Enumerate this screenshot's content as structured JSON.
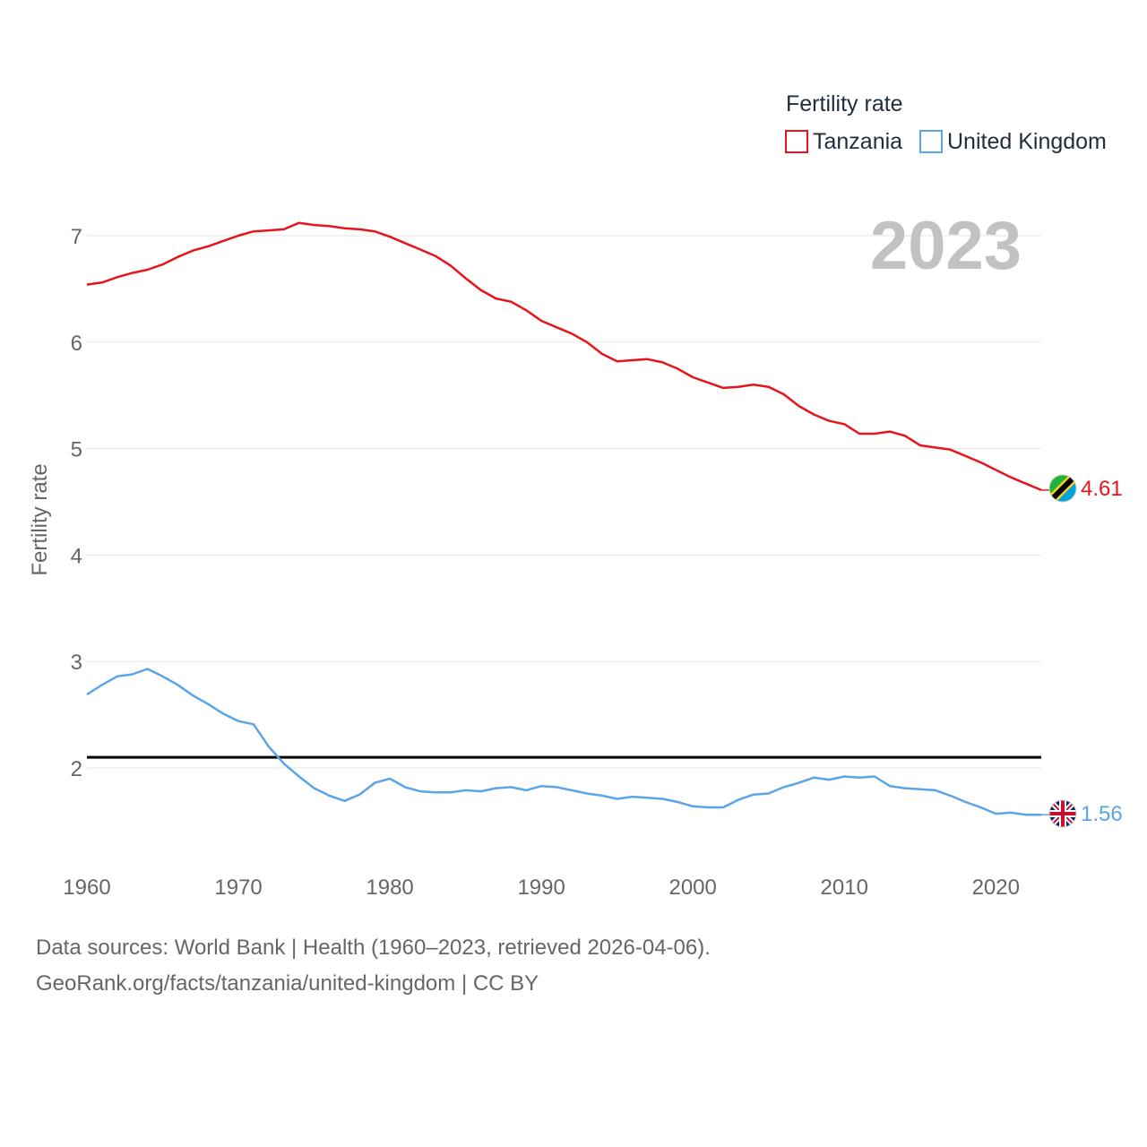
{
  "chart_data": {
    "type": "line",
    "ylabel": "Fertility rate",
    "xlim": [
      1960,
      2023
    ],
    "ylim": [
      1.0,
      7.5
    ],
    "yticks": [
      2,
      3,
      4,
      5,
      6,
      7
    ],
    "xticks": [
      1960,
      1970,
      1980,
      1990,
      2000,
      2010,
      2020
    ],
    "xtick_labels": [
      "1960",
      "1970",
      "1980",
      "1990",
      "2000",
      "2010",
      "2020"
    ],
    "ytick_labels": [
      "2",
      "3",
      "4",
      "5",
      "6",
      "7"
    ],
    "reference_line": 2.1,
    "year_label": "2023",
    "legend": {
      "title": "Fertility rate",
      "position": "top-right",
      "items": [
        "Tanzania",
        "United Kingdom"
      ]
    },
    "x": [
      1960,
      1961,
      1962,
      1963,
      1964,
      1965,
      1966,
      1967,
      1968,
      1969,
      1970,
      1971,
      1972,
      1973,
      1974,
      1975,
      1976,
      1977,
      1978,
      1979,
      1980,
      1981,
      1982,
      1983,
      1984,
      1985,
      1986,
      1987,
      1988,
      1989,
      1990,
      1991,
      1992,
      1993,
      1994,
      1995,
      1996,
      1997,
      1998,
      1999,
      2000,
      2001,
      2002,
      2003,
      2004,
      2005,
      2006,
      2007,
      2008,
      2009,
      2010,
      2011,
      2012,
      2013,
      2014,
      2015,
      2016,
      2017,
      2018,
      2019,
      2020,
      2021,
      2022,
      2023
    ],
    "series": [
      {
        "name": "Tanzania",
        "color": "#e8141c",
        "end_label": "4.61",
        "values": [
          6.54,
          6.56,
          6.61,
          6.65,
          6.68,
          6.73,
          6.8,
          6.86,
          6.9,
          6.95,
          7.0,
          7.04,
          7.05,
          7.06,
          7.12,
          7.1,
          7.09,
          7.07,
          7.06,
          7.04,
          6.99,
          6.93,
          6.87,
          6.81,
          6.72,
          6.6,
          6.49,
          6.41,
          6.38,
          6.3,
          6.2,
          6.14,
          6.08,
          6.0,
          5.89,
          5.82,
          5.83,
          5.84,
          5.81,
          5.75,
          5.67,
          5.62,
          5.57,
          5.58,
          5.6,
          5.58,
          5.51,
          5.4,
          5.32,
          5.26,
          5.23,
          5.14,
          5.14,
          5.16,
          5.12,
          5.03,
          5.01,
          4.99,
          4.93,
          4.87,
          4.8,
          4.73,
          4.67,
          4.61
        ]
      },
      {
        "name": "United Kingdom",
        "color": "#5aa5e8",
        "end_label": "1.56",
        "values": [
          2.69,
          2.78,
          2.86,
          2.88,
          2.93,
          2.86,
          2.78,
          2.68,
          2.6,
          2.51,
          2.44,
          2.41,
          2.2,
          2.04,
          1.92,
          1.81,
          1.74,
          1.69,
          1.75,
          1.86,
          1.9,
          1.82,
          1.78,
          1.77,
          1.77,
          1.79,
          1.78,
          1.81,
          1.82,
          1.79,
          1.83,
          1.82,
          1.79,
          1.76,
          1.74,
          1.71,
          1.73,
          1.72,
          1.71,
          1.68,
          1.64,
          1.63,
          1.63,
          1.7,
          1.75,
          1.76,
          1.82,
          1.86,
          1.91,
          1.89,
          1.92,
          1.91,
          1.92,
          1.83,
          1.81,
          1.8,
          1.79,
          1.74,
          1.68,
          1.63,
          1.57,
          1.58,
          1.56,
          1.56
        ]
      }
    ]
  },
  "footer": {
    "line1": "Data sources: World Bank | Health (1960–2023, retrieved 2026-04-06).",
    "line2": "GeoRank.org/facts/tanzania/united-kingdom | CC BY"
  }
}
